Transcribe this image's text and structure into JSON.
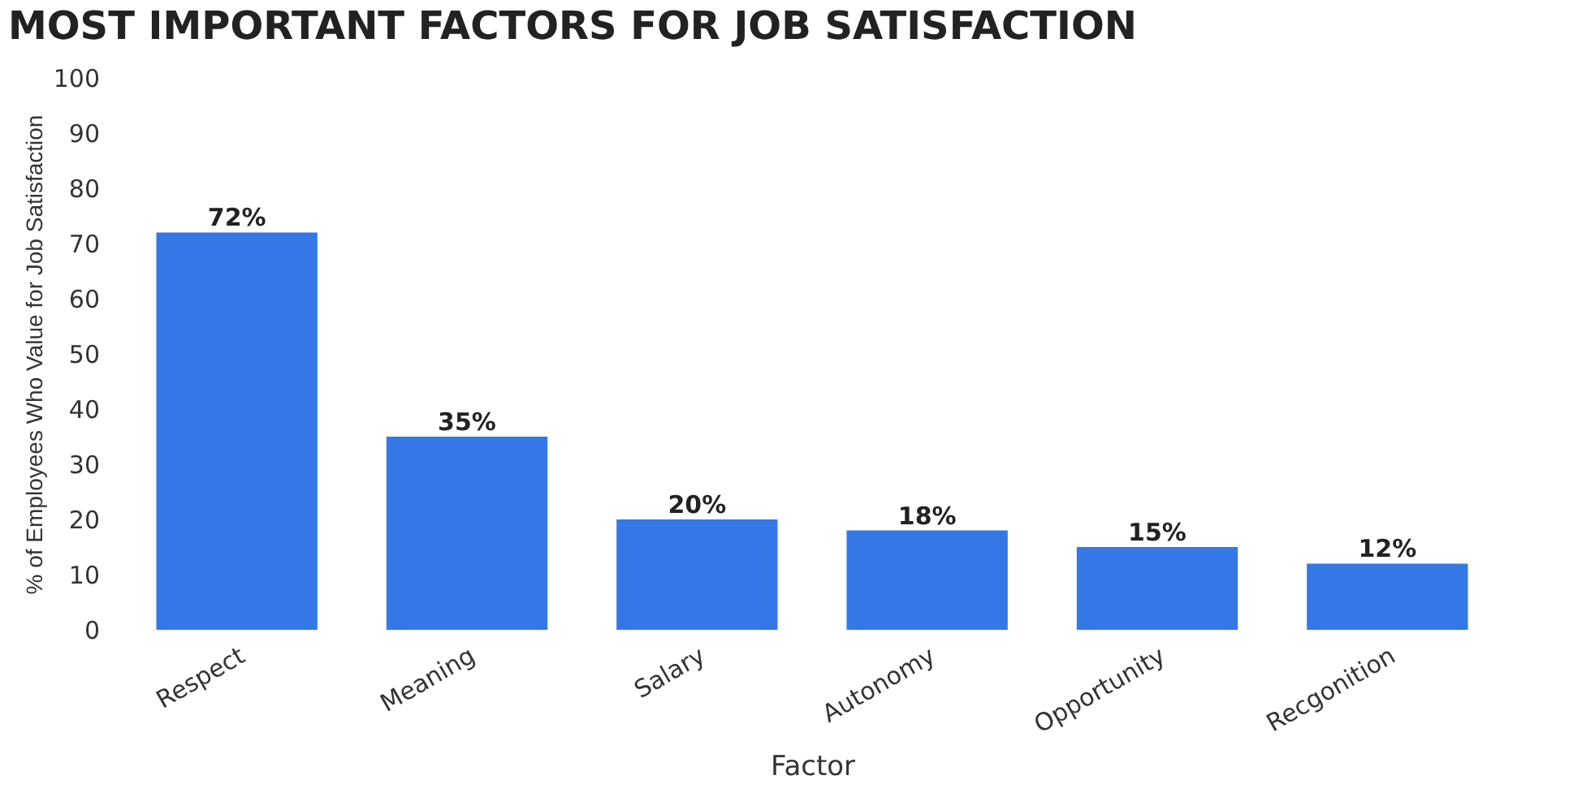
{
  "chart_data": {
    "type": "bar",
    "title": "MOST IMPORTANT FACTORS FOR JOB SATISFACTION",
    "xlabel": "Factor",
    "ylabel": "% of Employees Who Value for Job Satisfaction",
    "categories": [
      "Respect",
      "Meaning",
      "Salary",
      "Autonomy",
      "Opportunity",
      "Recgonition"
    ],
    "values": [
      72,
      35,
      20,
      18,
      15,
      12
    ],
    "value_labels": [
      "72%",
      "35%",
      "20%",
      "18%",
      "15%",
      "12%"
    ],
    "color": "#3478e8",
    "ylim": [
      0,
      100
    ],
    "yticks": [
      0,
      10,
      20,
      30,
      40,
      50,
      60,
      70,
      80,
      90,
      100
    ],
    "grid": false
  }
}
